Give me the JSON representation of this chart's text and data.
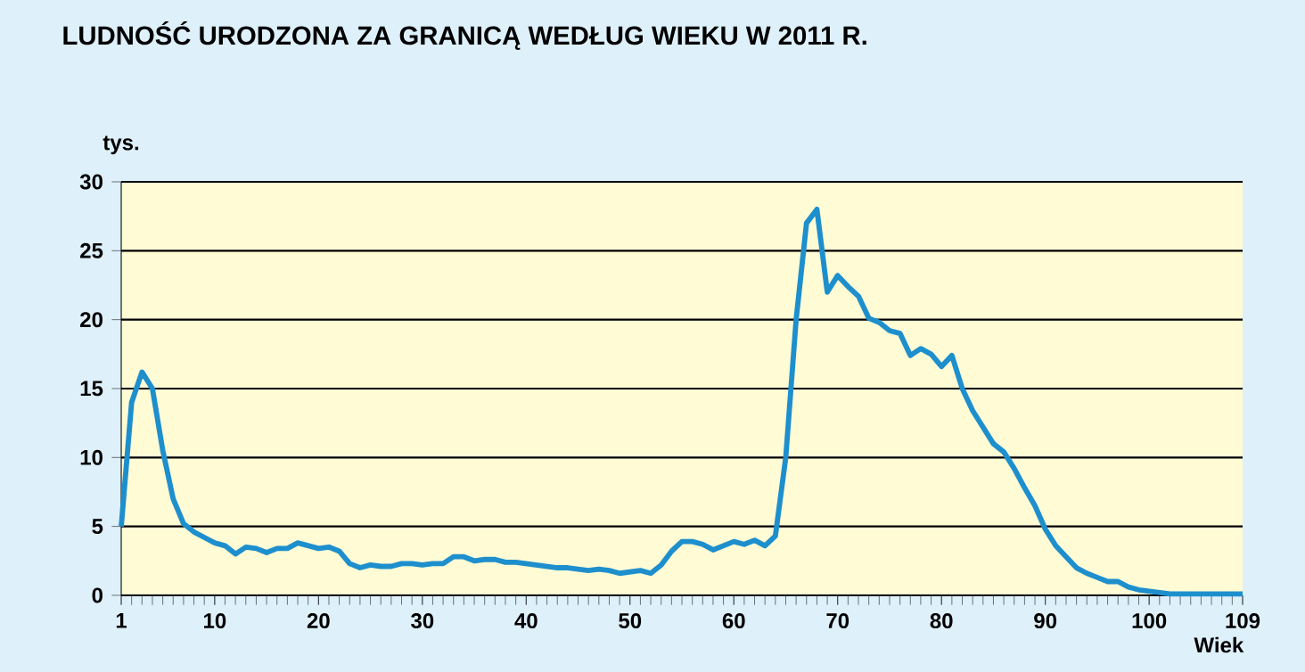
{
  "chart_data": {
    "type": "line",
    "title": "LUDNOŚĆ URODZONA ZA GRANICĄ WEDŁUG WIEKU W 2011 R.",
    "ylabel": "tys.",
    "xlabel": "Wiek",
    "x": [
      1,
      2,
      3,
      4,
      5,
      6,
      7,
      8,
      9,
      10,
      11,
      12,
      13,
      14,
      15,
      16,
      17,
      18,
      19,
      20,
      21,
      22,
      23,
      24,
      25,
      26,
      27,
      28,
      29,
      30,
      31,
      32,
      33,
      34,
      35,
      36,
      37,
      38,
      39,
      40,
      41,
      42,
      43,
      44,
      45,
      46,
      47,
      48,
      49,
      50,
      51,
      52,
      53,
      54,
      55,
      56,
      57,
      58,
      59,
      60,
      61,
      62,
      63,
      64,
      65,
      66,
      67,
      68,
      69,
      70,
      71,
      72,
      73,
      74,
      75,
      76,
      77,
      78,
      79,
      80,
      81,
      82,
      83,
      84,
      85,
      86,
      87,
      88,
      89,
      90,
      91,
      92,
      93,
      94,
      95,
      96,
      97,
      98,
      99,
      100,
      101,
      102,
      103,
      104,
      105,
      106,
      107,
      108,
      109
    ],
    "series": [
      {
        "color": "#1e8fcd",
        "values": [
          5,
          14,
          16.2,
          15,
          10.5,
          7,
          5.2,
          4.6,
          4.2,
          3.8,
          3.6,
          3.0,
          3.5,
          3.4,
          3.1,
          3.4,
          3.4,
          3.8,
          3.6,
          3.4,
          3.5,
          3.2,
          2.3,
          2.0,
          2.2,
          2.1,
          2.1,
          2.3,
          2.3,
          2.2,
          2.3,
          2.3,
          2.8,
          2.8,
          2.5,
          2.6,
          2.6,
          2.4,
          2.4,
          2.3,
          2.2,
          2.1,
          2.0,
          2.0,
          1.9,
          1.8,
          1.9,
          1.8,
          1.6,
          1.7,
          1.8,
          1.6,
          2.2,
          3.2,
          3.9,
          3.9,
          3.7,
          3.3,
          3.6,
          3.9,
          3.7,
          4.0,
          3.6,
          4.3,
          10,
          20,
          27,
          28,
          22,
          23.2,
          22.4,
          21.7,
          20.1,
          19.8,
          19.2,
          19.0,
          17.4,
          17.9,
          17.5,
          16.6,
          17.4,
          15,
          13.4,
          12.2,
          11,
          10.4,
          9.2,
          7.8,
          6.5,
          4.8,
          3.6,
          2.8,
          2.0,
          1.6,
          1.3,
          1.0,
          1.0,
          0.6,
          0.4,
          0.3,
          0.2,
          0.1,
          0.1,
          0.1,
          0.1,
          0.1,
          0.1,
          0.1,
          0.1
        ]
      }
    ],
    "xlim": [
      1,
      109
    ],
    "ylim": [
      0,
      30
    ],
    "xticks": [
      1,
      10,
      20,
      30,
      40,
      50,
      60,
      70,
      80,
      90,
      100,
      109
    ],
    "yticks": [
      0,
      5,
      10,
      15,
      20,
      25,
      30
    ],
    "grid": "y",
    "marker": "none",
    "line_style": "solid"
  }
}
